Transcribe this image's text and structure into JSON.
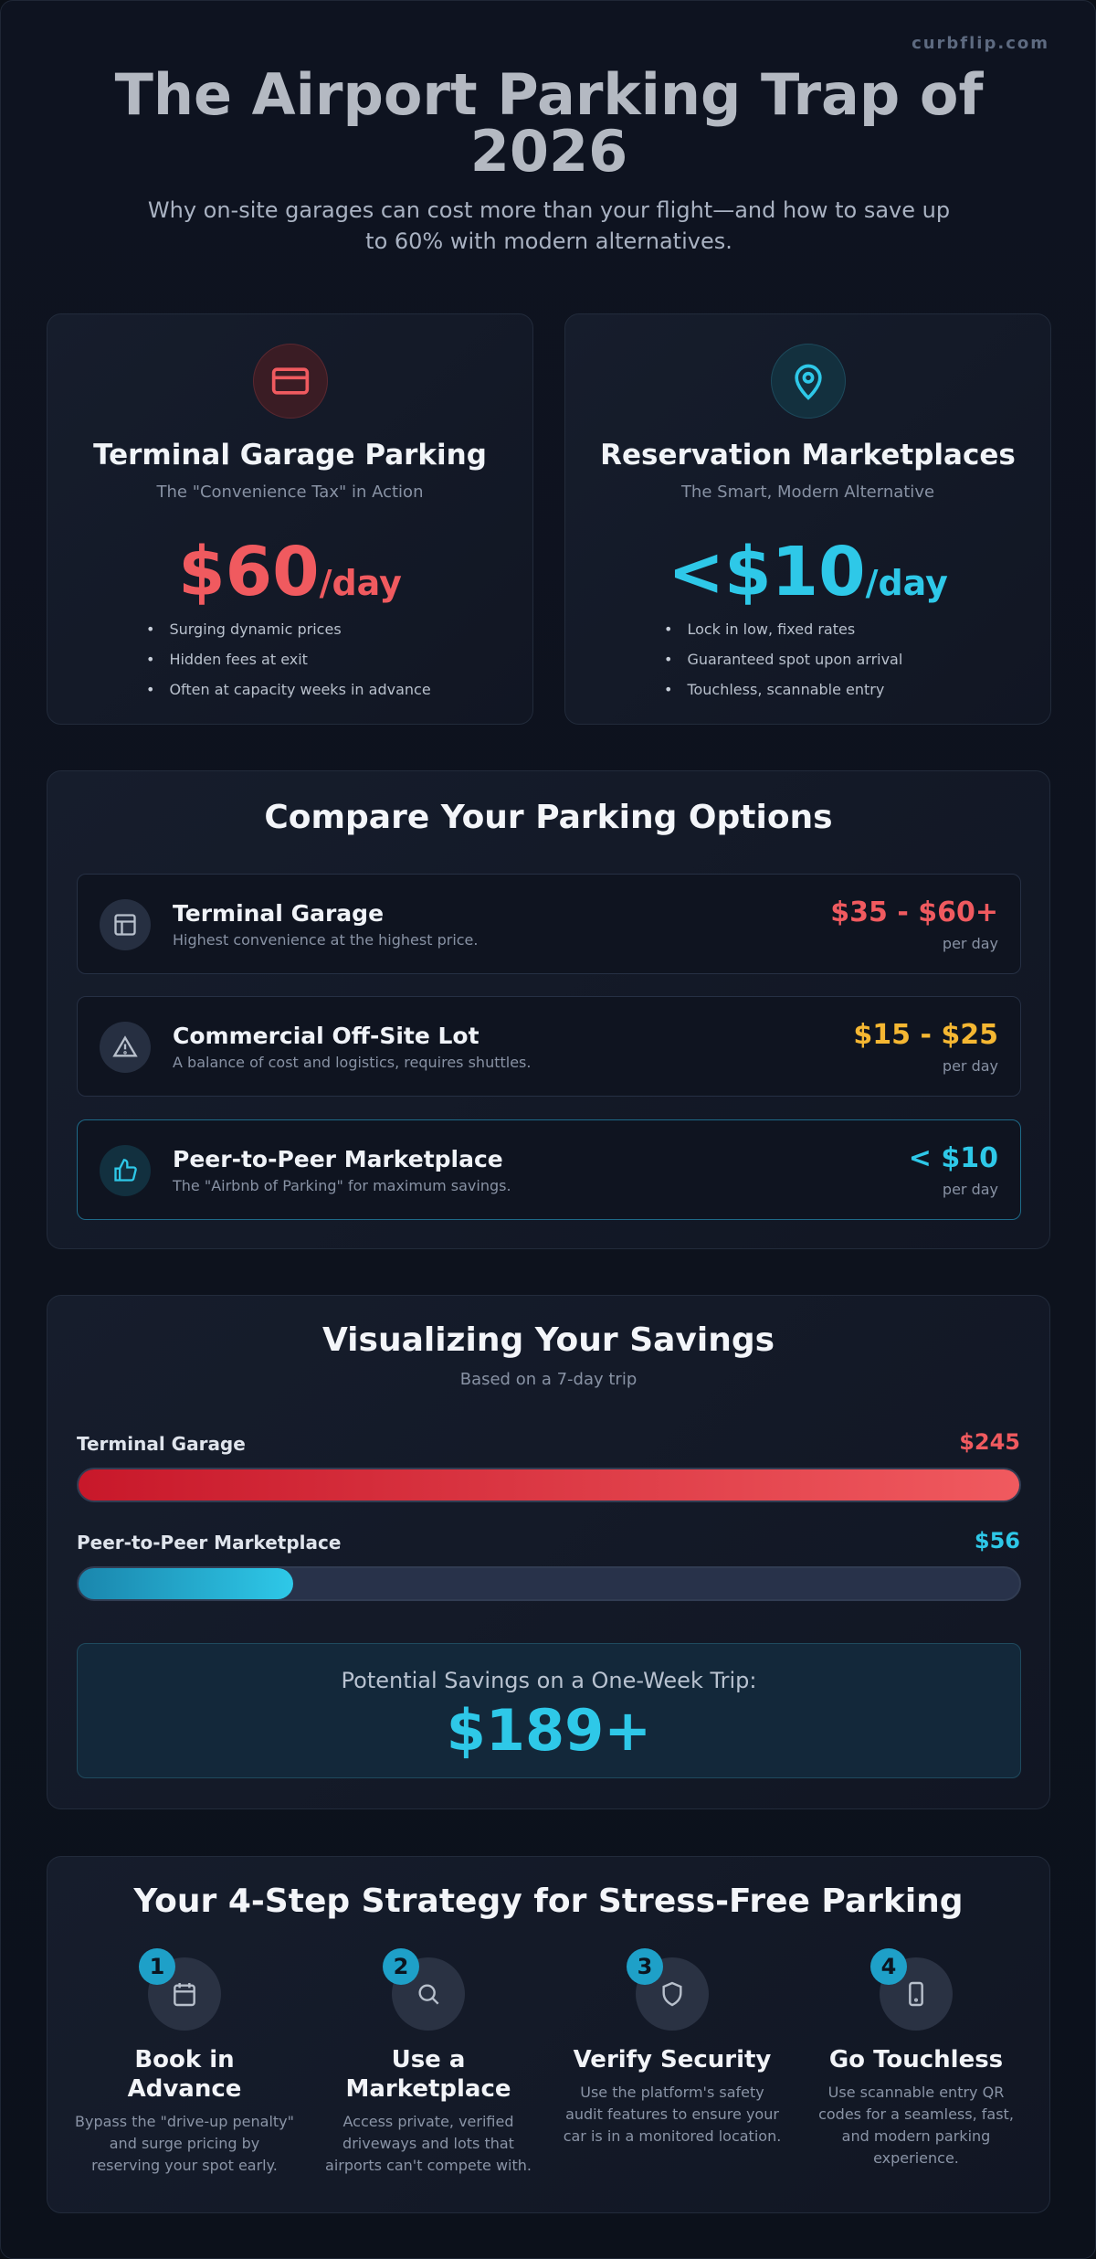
{
  "brand": "curbflip.com",
  "header": {
    "title": "The Airport Parking Trap of 2026",
    "subtitle": "Why on-site garages can cost more than your flight—and how to save up to 60% with modern alternatives."
  },
  "cards": [
    {
      "title": "Terminal Garage Parking",
      "tagline": "The \"Convenience Tax\" in Action",
      "price": "$60",
      "unit": "/day",
      "points": [
        "Surging dynamic prices",
        "Hidden fees at exit",
        "Often at capacity weeks in advance"
      ]
    },
    {
      "title": "Reservation Marketplaces",
      "tagline": "The Smart, Modern Alternative",
      "price": "<$10",
      "unit": "/day",
      "points": [
        "Lock in low, fixed rates",
        "Guaranteed spot upon arrival",
        "Touchless, scannable entry"
      ]
    }
  ],
  "compare": {
    "title": "Compare Your Parking Options",
    "options": [
      {
        "name": "Terminal Garage",
        "desc": "Highest convenience at the highest price.",
        "price": "$35 - $60+",
        "unit": "per day"
      },
      {
        "name": "Commercial Off-Site Lot",
        "desc": "A balance of cost and logistics, requires shuttles.",
        "price": "$15 - $25",
        "unit": "per day"
      },
      {
        "name": "Peer-to-Peer Marketplace",
        "desc": "The \"Airbnb of Parking\" for maximum savings.",
        "price": "< $10",
        "unit": "per day"
      }
    ]
  },
  "savings": {
    "title": "Visualizing Your Savings",
    "subtitle": "Based on a 7-day trip",
    "bars": [
      {
        "label": "Terminal Garage",
        "value": 245,
        "value_label": "$245",
        "color": "#f05a5f"
      },
      {
        "label": "Peer-to-Peer Marketplace",
        "value": 56,
        "value_label": "$56",
        "color": "#2ec8e8"
      }
    ],
    "callout": {
      "label": "Potential Savings on a One-Week Trip:",
      "amount": "$189+"
    }
  },
  "strategy": {
    "title": "Your 4-Step Strategy for Stress-Free Parking",
    "steps": [
      {
        "number": 1,
        "title": "Book in Advance",
        "text": "Bypass the \"drive-up penalty\" and surge pricing by reserving your spot early."
      },
      {
        "number": 2,
        "title": "Use a Marketplace",
        "text": "Access private, verified driveways and lots that airports can't compete with."
      },
      {
        "number": 3,
        "title": "Verify Security",
        "text": "Use the platform's safety audit features to ensure your car is in a monitored location."
      },
      {
        "number": 4,
        "title": "Go Touchless",
        "text": "Use scannable entry QR codes for a seamless, fast, and modern parking experience."
      }
    ]
  }
}
